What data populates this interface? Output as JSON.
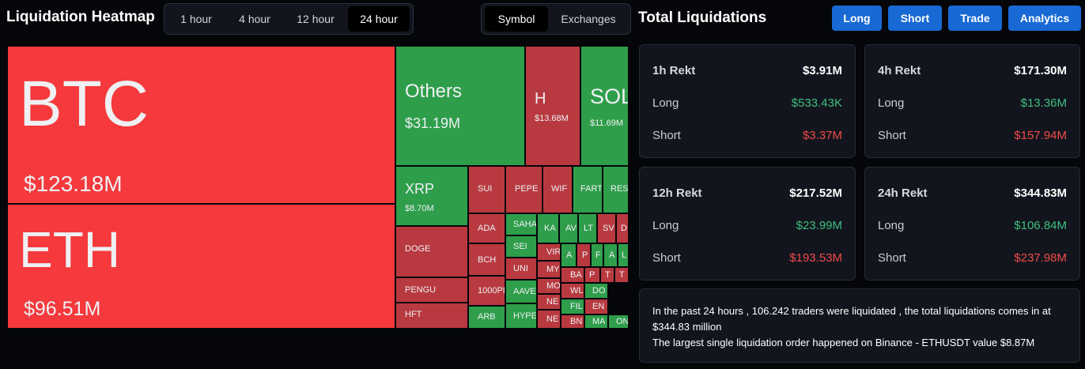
{
  "header": {
    "title": "Liquidation Heatmap",
    "time_tabs": [
      {
        "label": "1 hour",
        "active": false
      },
      {
        "label": "4 hour",
        "active": false
      },
      {
        "label": "12 hour",
        "active": false
      },
      {
        "label": "24 hour",
        "active": true
      }
    ],
    "group_tabs": [
      {
        "label": "Symbol",
        "active": true
      },
      {
        "label": "Exchanges",
        "active": false
      }
    ]
  },
  "right_header": {
    "title": "Total Liquidations",
    "buttons": [
      "Long",
      "Short",
      "Trade",
      "Analytics"
    ]
  },
  "colors": {
    "bright_red": "#f5393c",
    "green": "#2f9e4b",
    "dark_red": "#b83a40",
    "long_value": "#3fbf7f",
    "short_value": "#f04b4b",
    "button_blue": "#1869d4"
  },
  "heatmap": [
    {
      "symbol": "BTC",
      "value": "$123.18M",
      "color": "bright_red"
    },
    {
      "symbol": "ETH",
      "value": "$96.51M",
      "color": "bright_red"
    },
    {
      "symbol": "Others",
      "value": "$31.19M",
      "color": "green"
    },
    {
      "symbol": "H",
      "value": "$13.68M",
      "color": "dark_red"
    },
    {
      "symbol": "SOL",
      "value": "$11.69M",
      "color": "green"
    },
    {
      "symbol": "XRP",
      "value": "$8.70M",
      "color": "green"
    },
    {
      "symbol": "DOGE",
      "value": "",
      "color": "dark_red"
    },
    {
      "symbol": "PENGU",
      "value": "",
      "color": "dark_red"
    },
    {
      "symbol": "HFT",
      "value": "",
      "color": "dark_red"
    },
    {
      "symbol": "SUI",
      "value": "",
      "color": "dark_red"
    },
    {
      "symbol": "PEPE",
      "value": "",
      "color": "dark_red"
    },
    {
      "symbol": "WIF",
      "value": "",
      "color": "dark_red"
    },
    {
      "symbol": "FART",
      "value": "",
      "color": "green"
    },
    {
      "symbol": "RES",
      "value": "",
      "color": "green"
    },
    {
      "symbol": "ADA",
      "value": "",
      "color": "dark_red"
    },
    {
      "symbol": "BCH",
      "value": "",
      "color": "dark_red"
    },
    {
      "symbol": "1000PI",
      "value": "",
      "color": "dark_red"
    },
    {
      "symbol": "ARB",
      "value": "",
      "color": "green"
    },
    {
      "symbol": "SAHA",
      "value": "",
      "color": "green"
    },
    {
      "symbol": "SEI",
      "value": "",
      "color": "green"
    },
    {
      "symbol": "UNI",
      "value": "",
      "color": "dark_red"
    },
    {
      "symbol": "AAVE",
      "value": "",
      "color": "green"
    },
    {
      "symbol": "HYPE",
      "value": "",
      "color": "green"
    },
    {
      "symbol": "KA",
      "value": "",
      "color": "green"
    },
    {
      "symbol": "AV",
      "value": "",
      "color": "green"
    },
    {
      "symbol": "LT",
      "value": "",
      "color": "green"
    },
    {
      "symbol": "SV",
      "value": "",
      "color": "dark_red"
    },
    {
      "symbol": "D",
      "value": "",
      "color": "dark_red"
    },
    {
      "symbol": "VIR",
      "value": "",
      "color": "dark_red"
    },
    {
      "symbol": "MY",
      "value": "",
      "color": "dark_red"
    },
    {
      "symbol": "MO",
      "value": "",
      "color": "dark_red"
    },
    {
      "symbol": "NE",
      "value": "",
      "color": "dark_red"
    },
    {
      "symbol": "NE",
      "value": "",
      "color": "dark_red"
    },
    {
      "symbol": "A",
      "value": "",
      "color": "green"
    },
    {
      "symbol": "P",
      "value": "",
      "color": "dark_red"
    },
    {
      "symbol": "F",
      "value": "",
      "color": "green"
    },
    {
      "symbol": "A",
      "value": "",
      "color": "green"
    },
    {
      "symbol": "L",
      "value": "",
      "color": "green"
    },
    {
      "symbol": "BA",
      "value": "",
      "color": "dark_red"
    },
    {
      "symbol": "P",
      "value": "",
      "color": "dark_red"
    },
    {
      "symbol": "T",
      "value": "",
      "color": "dark_red"
    },
    {
      "symbol": "T",
      "value": "",
      "color": "dark_red"
    },
    {
      "symbol": "WL",
      "value": "",
      "color": "dark_red"
    },
    {
      "symbol": "DO",
      "value": "",
      "color": "green"
    },
    {
      "symbol": "FIL",
      "value": "",
      "color": "green"
    },
    {
      "symbol": "EN",
      "value": "",
      "color": "dark_red"
    },
    {
      "symbol": "BN",
      "value": "",
      "color": "dark_red"
    },
    {
      "symbol": "MA",
      "value": "",
      "color": "green"
    },
    {
      "symbol": "ON",
      "value": "",
      "color": "green"
    }
  ],
  "cards": [
    {
      "period": "1h Rekt",
      "total": "$3.91M",
      "long_label": "Long",
      "long": "$533.43K",
      "short_label": "Short",
      "short": "$3.37M"
    },
    {
      "period": "4h Rekt",
      "total": "$171.30M",
      "long_label": "Long",
      "long": "$13.36M",
      "short_label": "Short",
      "short": "$157.94M"
    },
    {
      "period": "12h Rekt",
      "total": "$217.52M",
      "long_label": "Long",
      "long": "$23.99M",
      "short_label": "Short",
      "short": "$193.53M"
    },
    {
      "period": "24h Rekt",
      "total": "$344.83M",
      "long_label": "Long",
      "long": "$106.84M",
      "short_label": "Short",
      "short": "$237.98M"
    }
  ],
  "summary": {
    "line1": "In the past 24 hours , 106.242 traders were liquidated , the total liquidations comes in at $344.83 million",
    "line2": "The largest single liquidation order happened on Binance - ETHUSDT value $8.87M"
  }
}
